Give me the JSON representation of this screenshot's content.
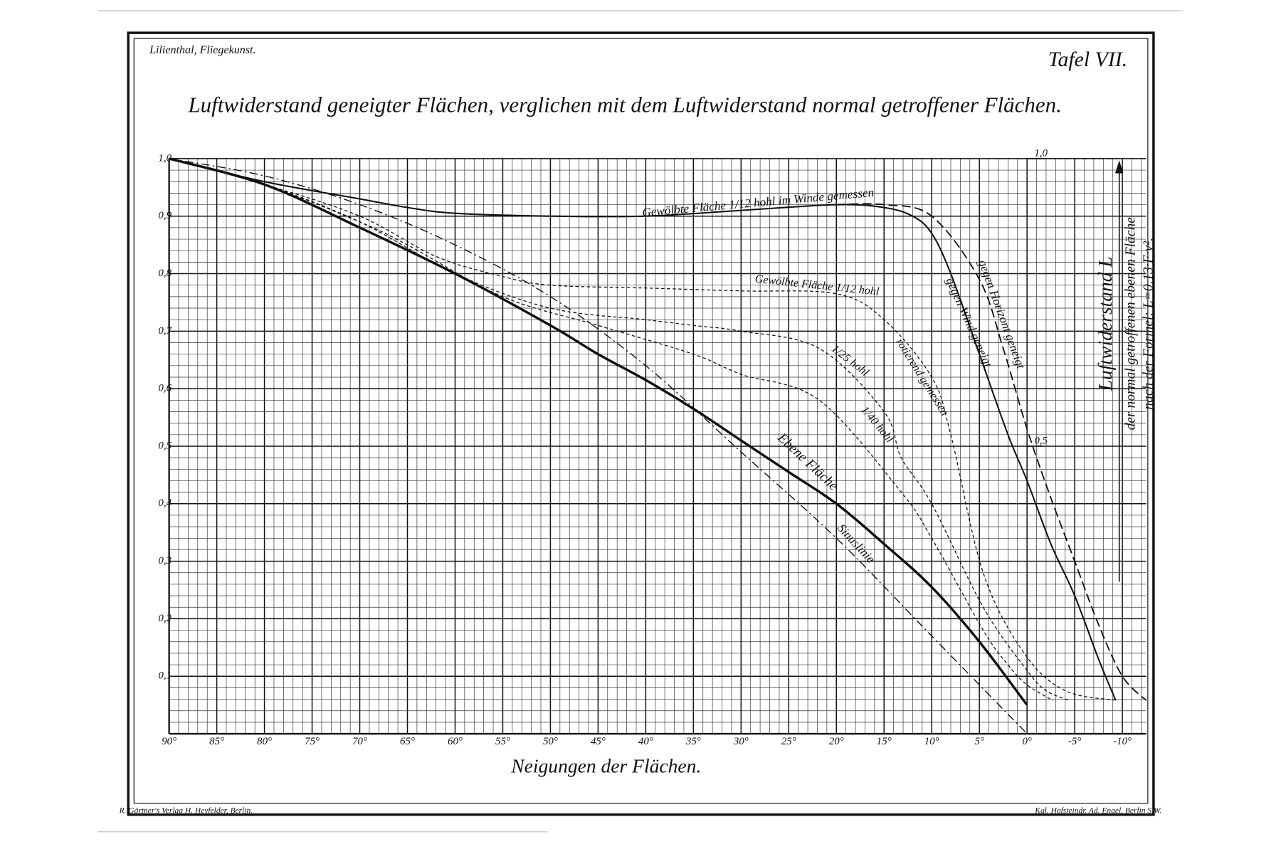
{
  "chart_data": {
    "type": "line",
    "header_left": "Lilienthal, Fliegekunst.",
    "header_right": "Tafel VII.",
    "title": "Luftwiderstand geneigter Flächen, verglichen mit dem Luftwiderstand normal getroffener Flächen.",
    "x_label": "Neigungen der Flächen.",
    "y2_label": "Luftwiderstand L",
    "y2_sublabels": [
      "der normal getroffenen ebenen Fläche",
      "nach der Formel: L=0,13·F·v²."
    ],
    "footer_left": "R. Gärtner's Verlag H. Heyfelder, Berlin.",
    "footer_right": "Kgl. Hofsteindr. Ad. Engel, Berlin S.W.",
    "xlim": [
      90,
      -12.5
    ],
    "ylim": [
      0,
      1.0
    ],
    "y2lim": [
      0,
      1.0
    ],
    "grid": true,
    "minor_grid": true,
    "xticks": [
      {
        "value": 90,
        "label": "90°"
      },
      {
        "value": 85,
        "label": "85°"
      },
      {
        "value": 80,
        "label": "80°"
      },
      {
        "value": 75,
        "label": "75°"
      },
      {
        "value": 70,
        "label": "70°"
      },
      {
        "value": 65,
        "label": "65°"
      },
      {
        "value": 60,
        "label": "60°"
      },
      {
        "value": 55,
        "label": "55°"
      },
      {
        "value": 50,
        "label": "50°"
      },
      {
        "value": 45,
        "label": "45°"
      },
      {
        "value": 40,
        "label": "40°"
      },
      {
        "value": 35,
        "label": "35°"
      },
      {
        "value": 30,
        "label": "30°"
      },
      {
        "value": 25,
        "label": "25°"
      },
      {
        "value": 20,
        "label": "20°"
      },
      {
        "value": 15,
        "label": "15°"
      },
      {
        "value": 10,
        "label": "10°"
      },
      {
        "value": 5,
        "label": "5°"
      },
      {
        "value": 0,
        "label": "0°"
      },
      {
        "value": -5,
        "label": "-5°"
      },
      {
        "value": -10,
        "label": "-10°"
      }
    ],
    "yticks": [
      {
        "value": 1.0,
        "label": "1,0"
      },
      {
        "value": 0.9,
        "label": "0,9"
      },
      {
        "value": 0.8,
        "label": "0,8"
      },
      {
        "value": 0.7,
        "label": "0,7"
      },
      {
        "value": 0.6,
        "label": "0,6"
      },
      {
        "value": 0.5,
        "label": "0,5"
      },
      {
        "value": 0.4,
        "label": "0,4"
      },
      {
        "value": 0.3,
        "label": "0,3"
      },
      {
        "value": 0.2,
        "label": "0,2"
      },
      {
        "value": 0.1,
        "label": "0,1"
      }
    ],
    "y2ticks": [
      {
        "value": 1.0,
        "label": "1,0"
      },
      {
        "value": 0.5,
        "label": "0,5"
      }
    ],
    "series": [
      {
        "name": "Ebene Fläche",
        "color": "#111111",
        "style": "thick",
        "x": [
          90,
          80,
          70,
          60,
          50,
          45,
          40,
          35,
          30,
          25,
          20,
          15,
          10,
          5,
          0
        ],
        "values": [
          1.0,
          0.955,
          0.88,
          0.8,
          0.71,
          0.66,
          0.615,
          0.565,
          0.51,
          0.455,
          0.4,
          0.33,
          0.255,
          0.16,
          0.05
        ]
      },
      {
        "name": "Sinuslinie",
        "color": "#111111",
        "style": "dashdot",
        "x": [
          90,
          80,
          70,
          60,
          50,
          40,
          30,
          20,
          10,
          0
        ],
        "values": [
          1.0,
          0.97,
          0.92,
          0.85,
          0.76,
          0.64,
          0.49,
          0.34,
          0.17,
          0.0
        ]
      },
      {
        "name": "gegen Wind geneigt",
        "color": "#111111",
        "style": "solid",
        "x": [
          90,
          80,
          70,
          65,
          60,
          50,
          40,
          30,
          20,
          15,
          12,
          10,
          8,
          5,
          2,
          0,
          -2.5,
          -5,
          -7.5,
          -9.3
        ],
        "values": [
          1.0,
          0.96,
          0.93,
          0.915,
          0.905,
          0.9,
          0.9,
          0.91,
          0.92,
          0.915,
          0.9,
          0.87,
          0.8,
          0.66,
          0.52,
          0.44,
          0.33,
          0.24,
          0.13,
          0.058
        ]
      },
      {
        "name": "gegen Horizont geneigt",
        "color": "#111111",
        "style": "dashed",
        "x": [
          20,
          15,
          10,
          5,
          2.5,
          0,
          -2.5,
          -5,
          -7.5,
          -10,
          -12.5
        ],
        "values": [
          0.92,
          0.92,
          0.9,
          0.79,
          0.67,
          0.53,
          0.41,
          0.3,
          0.19,
          0.1,
          0.058
        ]
      },
      {
        "name": "Gewölbte Fläche 1/12 hohl",
        "color": "#111111",
        "style": "fine",
        "x": [
          90,
          80,
          70,
          62,
          55,
          50,
          40,
          30,
          20,
          15,
          10,
          8,
          4.6,
          0.3,
          -4,
          -9.5
        ],
        "values": [
          1.0,
          0.955,
          0.9,
          0.83,
          0.795,
          0.78,
          0.775,
          0.77,
          0.765,
          0.72,
          0.62,
          0.52,
          0.28,
          0.14,
          0.075,
          0.058
        ]
      },
      {
        "name": "1/25 hohl",
        "color": "#111111",
        "style": "fine",
        "x": [
          90,
          80,
          70,
          60,
          50,
          40,
          35,
          30,
          21.8,
          15,
          13.2,
          10,
          4.6,
          0,
          -2,
          -4.4
        ],
        "values": [
          1.0,
          0.955,
          0.89,
          0.8,
          0.74,
          0.72,
          0.71,
          0.7,
          0.67,
          0.56,
          0.48,
          0.4,
          0.22,
          0.11,
          0.075,
          0.058
        ]
      },
      {
        "name": "1/40 hohl",
        "color": "#111111",
        "style": "fine",
        "x": [
          90,
          80,
          70,
          65,
          55,
          45,
          35,
          30,
          21.8,
          13.2,
          10,
          4.6,
          2,
          0,
          -2.7
        ],
        "values": [
          1.0,
          0.955,
          0.89,
          0.85,
          0.76,
          0.71,
          0.66,
          0.625,
          0.58,
          0.42,
          0.34,
          0.18,
          0.12,
          0.085,
          0.058
        ]
      }
    ],
    "annotations": [
      "Gewölbte Fläche 1/12 hohl im Winde gemessen",
      "rotierend gemessen"
    ]
  }
}
